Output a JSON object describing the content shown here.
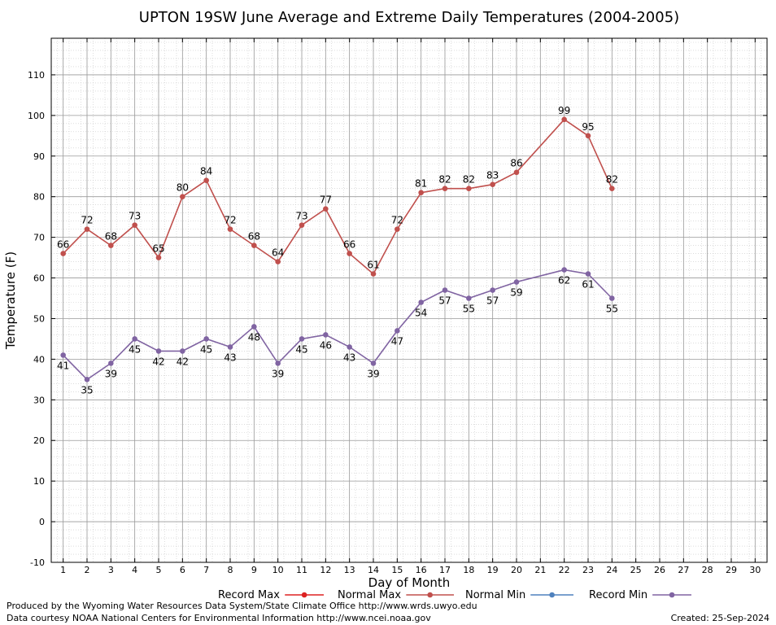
{
  "chart_data": {
    "type": "line",
    "title": "UPTON 19SW June Average and Extreme Daily Temperatures (2004-2005)",
    "xlabel": "Day of Month",
    "ylabel": "Temperature (F)",
    "xlim": [
      0.5,
      30.5
    ],
    "ylim": [
      -10,
      119
    ],
    "x_ticks": [
      1,
      2,
      3,
      4,
      5,
      6,
      7,
      8,
      9,
      10,
      11,
      12,
      13,
      14,
      15,
      16,
      17,
      18,
      19,
      20,
      21,
      22,
      23,
      24,
      25,
      26,
      27,
      28,
      29,
      30
    ],
    "y_ticks": [
      -10,
      0,
      10,
      20,
      30,
      40,
      50,
      60,
      70,
      80,
      90,
      100,
      110
    ],
    "grid": true,
    "legend_position": "bottom",
    "legend": [
      {
        "name": "Record Max",
        "color": "#dd2222"
      },
      {
        "name": "Normal Max",
        "color": "#c0504d"
      },
      {
        "name": "Normal Min",
        "color": "#4f81bd"
      },
      {
        "name": "Record Min",
        "color": "#8064a2"
      }
    ],
    "series": [
      {
        "name": "Normal Max",
        "color": "#c0504d",
        "x": [
          1,
          2,
          3,
          4,
          5,
          6,
          7,
          8,
          9,
          10,
          11,
          12,
          13,
          14,
          15,
          16,
          17,
          18,
          19,
          20,
          22,
          23,
          24
        ],
        "values": [
          66,
          72,
          68,
          73,
          65,
          80,
          84,
          72,
          68,
          64,
          73,
          77,
          66,
          61,
          72,
          81,
          82,
          82,
          83,
          86,
          99,
          95,
          82
        ],
        "label_position": "above"
      },
      {
        "name": "Record Min",
        "color": "#8064a2",
        "x": [
          1,
          2,
          3,
          4,
          5,
          6,
          7,
          8,
          9,
          10,
          11,
          12,
          13,
          14,
          15,
          16,
          17,
          18,
          19,
          20,
          22,
          23,
          24
        ],
        "values": [
          41,
          35,
          39,
          45,
          42,
          42,
          45,
          43,
          48,
          39,
          45,
          46,
          43,
          39,
          47,
          54,
          57,
          55,
          57,
          59,
          62,
          61,
          55
        ],
        "label_position": "below"
      }
    ]
  },
  "footer": {
    "produced_by": "Produced by the Wyoming Water Resources Data System/State Climate Office http://www.wrds.uwyo.edu",
    "courtesy": "Data courtesy NOAA National Centers for Environmental Information http://www.ncei.noaa.gov",
    "created": "Created:  25-Sep-2024"
  }
}
